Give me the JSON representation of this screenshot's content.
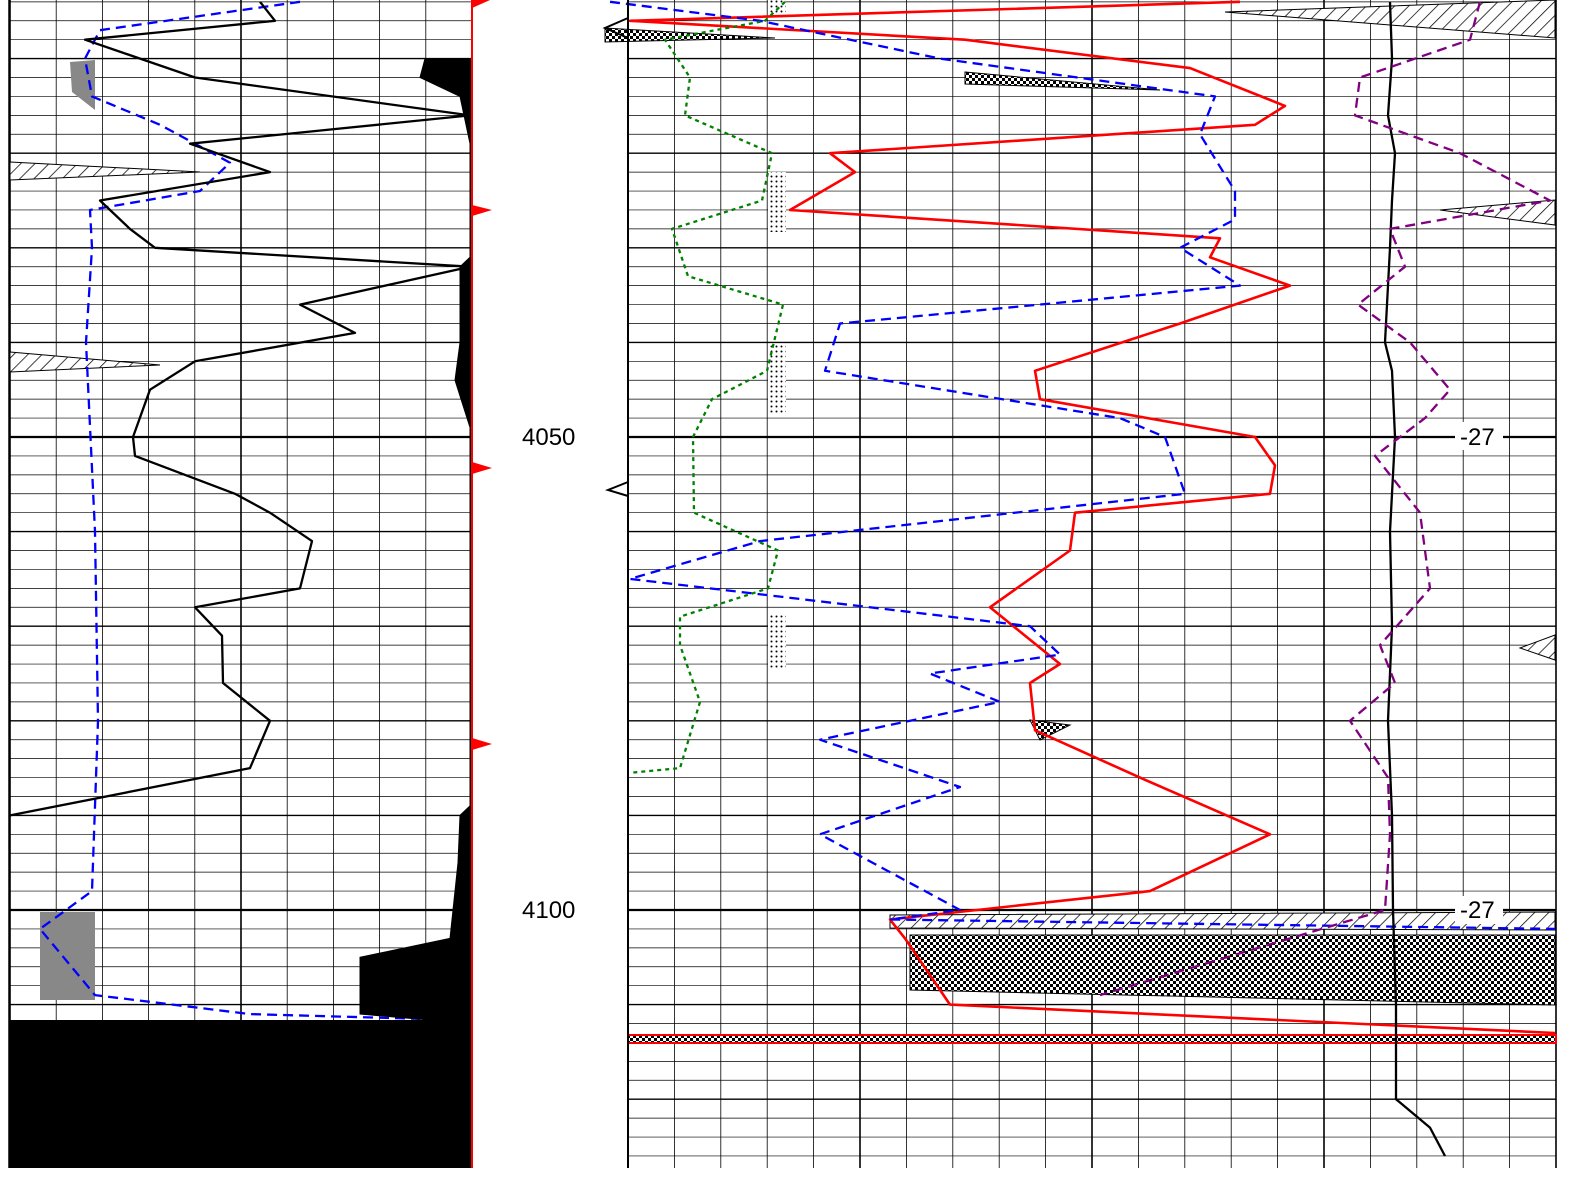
{
  "chart_data": {
    "type": "line",
    "y_axis": {
      "label": "",
      "unit": "",
      "range": [
        4004,
        4129
      ],
      "reversed": true
    },
    "depth_tick_labels": [
      {
        "depth": 4050,
        "text": "4050"
      },
      {
        "depth": 4100,
        "text": "4100"
      }
    ],
    "curve_annotations": [
      {
        "depth": 4050,
        "text": "-27"
      },
      {
        "depth": 4100,
        "text": "-27"
      }
    ],
    "grid": true,
    "tracks": [
      {
        "name": "track-1",
        "series": [
          {
            "id": "t1-blue-dash",
            "color": "#0000ff",
            "style": "dashed",
            "points": [
              [
                4004,
                300
              ],
              [
                4007,
                100
              ],
              [
                4010,
                85
              ],
              [
                4014,
                92
              ],
              [
                4017,
                160
              ],
              [
                4021,
                230
              ],
              [
                4024,
                200
              ],
              [
                4026,
                90
              ],
              [
                4030,
                92
              ],
              [
                4040,
                86
              ],
              [
                4060,
                95
              ],
              [
                4080,
                98
              ],
              [
                4098,
                92
              ],
              [
                4102,
                40
              ],
              [
                4109,
                95
              ],
              [
                4111,
                250
              ],
              [
                4111.5,
                420
              ]
            ]
          },
          {
            "id": "t1-black-solid",
            "color": "#000000",
            "style": "solid",
            "points": [
              [
                4004,
                260
              ],
              [
                4006,
                275
              ],
              [
                4008,
                85
              ],
              [
                4012,
                195
              ],
              [
                4016,
                470
              ],
              [
                4019,
                190
              ],
              [
                4022,
                270
              ],
              [
                4025,
                100
              ],
              [
                4028,
                130
              ],
              [
                4030,
                155
              ],
              [
                4032,
                470
              ],
              [
                4036,
                300
              ],
              [
                4039,
                355
              ],
              [
                4042,
                195
              ],
              [
                4045,
                150
              ],
              [
                4050,
                133
              ],
              [
                4052,
                135
              ],
              [
                4056,
                235
              ],
              [
                4058,
                270
              ],
              [
                4061,
                312
              ],
              [
                4066,
                300
              ],
              [
                4068,
                195
              ],
              [
                4071,
                222
              ],
              [
                4076,
                223
              ],
              [
                4080,
                270
              ],
              [
                4085,
                250
              ],
              [
                4090,
                10
              ]
            ]
          }
        ]
      },
      {
        "name": "track-2",
        "series": [
          {
            "id": "t2-black-step",
            "color": "#000000",
            "style": "filled",
            "points": [
              [
                4010,
                425
              ],
              [
                4012,
                420
              ],
              [
                4014,
                460
              ],
              [
                4019,
                470
              ],
              [
                4031,
                470
              ],
              [
                4032,
                460
              ],
              [
                4040,
                460
              ],
              [
                4044,
                455
              ],
              [
                4049,
                470
              ],
              [
                4089,
                470
              ],
              [
                4090,
                460
              ],
              [
                4095,
                458
              ],
              [
                4103,
                450
              ],
              [
                4105,
                360
              ],
              [
                4111,
                360
              ],
              [
                4112,
                470
              ]
            ]
          }
        ]
      },
      {
        "name": "track-3",
        "series": [
          {
            "id": "t3-red-solid",
            "color": "#ff0000",
            "style": "solid",
            "points": [
              [
                4004,
                1240
              ],
              [
                4006,
                630
              ],
              [
                4008,
                965
              ],
              [
                4011,
                1190
              ],
              [
                4015,
                1285
              ],
              [
                4017,
                1255
              ],
              [
                4020,
                830
              ],
              [
                4022,
                855
              ],
              [
                4026,
                790
              ],
              [
                4029,
                1220
              ],
              [
                4031,
                1210
              ],
              [
                4034,
                1290
              ],
              [
                4038,
                1180
              ],
              [
                4043,
                1035
              ],
              [
                4046,
                1040
              ],
              [
                4050,
                1255
              ],
              [
                4053,
                1275
              ],
              [
                4056,
                1270
              ],
              [
                4058,
                1075
              ],
              [
                4062,
                1070
              ],
              [
                4068,
                990
              ],
              [
                4074,
                1060
              ],
              [
                4076,
                1030
              ],
              [
                4081,
                1035
              ],
              [
                4086,
                1140
              ],
              [
                4092,
                1270
              ],
              [
                4098,
                1150
              ],
              [
                4101,
                890
              ],
              [
                4103,
                905
              ],
              [
                4110,
                950
              ],
              [
                4113,
                1555
              ]
            ]
          },
          {
            "id": "t3-blue-dash",
            "color": "#0000ff",
            "style": "dashed",
            "points": [
              [
                4004,
                610
              ],
              [
                4006,
                760
              ],
              [
                4010,
                940
              ],
              [
                4014,
                1215
              ],
              [
                4018,
                1200
              ],
              [
                4024,
                1235
              ],
              [
                4027,
                1235
              ],
              [
                4030,
                1180
              ],
              [
                4034,
                1240
              ],
              [
                4038,
                840
              ],
              [
                4043,
                825
              ],
              [
                4048,
                1120
              ],
              [
                4050,
                1165
              ],
              [
                4056,
                1185
              ],
              [
                4061,
                760
              ],
              [
                4065,
                630
              ],
              [
                4070,
                1030
              ],
              [
                4073,
                1060
              ],
              [
                4075,
                930
              ],
              [
                4078,
                1000
              ],
              [
                4082,
                820
              ],
              [
                4087,
                960
              ],
              [
                4092,
                820
              ],
              [
                4100,
                960
              ],
              [
                4101,
                890
              ],
              [
                4102,
                1555
              ]
            ]
          },
          {
            "id": "t3-green-dot",
            "color": "#008000",
            "style": "dotted",
            "points": [
              [
                4004,
                785
              ],
              [
                4006,
                765
              ],
              [
                4008,
                665
              ],
              [
                4012,
                690
              ],
              [
                4016,
                685
              ],
              [
                4020,
                772
              ],
              [
                4025,
                762
              ],
              [
                4028,
                672
              ],
              [
                4033,
                688
              ],
              [
                4036,
                783
              ],
              [
                4043,
                767
              ],
              [
                4046,
                712
              ],
              [
                4050,
                693
              ],
              [
                4058,
                694
              ],
              [
                4062,
                778
              ],
              [
                4066,
                768
              ],
              [
                4069,
                680
              ],
              [
                4072,
                680
              ],
              [
                4078,
                700
              ],
              [
                4085,
                680
              ],
              [
                4085.5,
                630
              ]
            ]
          },
          {
            "id": "t3-black-solid",
            "color": "#000000",
            "style": "solid",
            "points": [
              [
                4004,
                1390
              ],
              [
                4010,
                1392
              ],
              [
                4016,
                1388
              ],
              [
                4020,
                1395
              ],
              [
                4025,
                1392
              ],
              [
                4030,
                1390
              ],
              [
                4040,
                1385
              ],
              [
                4043,
                1392
              ],
              [
                4050,
                1395
              ],
              [
                4060,
                1390
              ],
              [
                4070,
                1392
              ],
              [
                4080,
                1388
              ],
              [
                4090,
                1392
              ],
              [
                4100,
                1393
              ],
              [
                4110,
                1396
              ],
              [
                4120,
                1396
              ],
              [
                4123,
                1430
              ],
              [
                4126,
                1445
              ]
            ]
          },
          {
            "id": "t3-purple-dash",
            "color": "#800080",
            "style": "dashed",
            "points": [
              [
                4004,
                1480
              ],
              [
                4008,
                1470
              ],
              [
                4012,
                1360
              ],
              [
                4016,
                1355
              ],
              [
                4020,
                1460
              ],
              [
                4025,
                1550
              ],
              [
                4028,
                1390
              ],
              [
                4032,
                1405
              ],
              [
                4036,
                1358
              ],
              [
                4040,
                1410
              ],
              [
                4045,
                1450
              ],
              [
                4048,
                1425
              ],
              [
                4052,
                1375
              ],
              [
                4058,
                1420
              ],
              [
                4066,
                1430
              ],
              [
                4072,
                1380
              ],
              [
                4076,
                1395
              ],
              [
                4080,
                1350
              ],
              [
                4086,
                1388
              ],
              [
                4092,
                1390
              ],
              [
                4100,
                1385
              ],
              [
                4109,
                1100
              ]
            ]
          }
        ]
      }
    ]
  }
}
